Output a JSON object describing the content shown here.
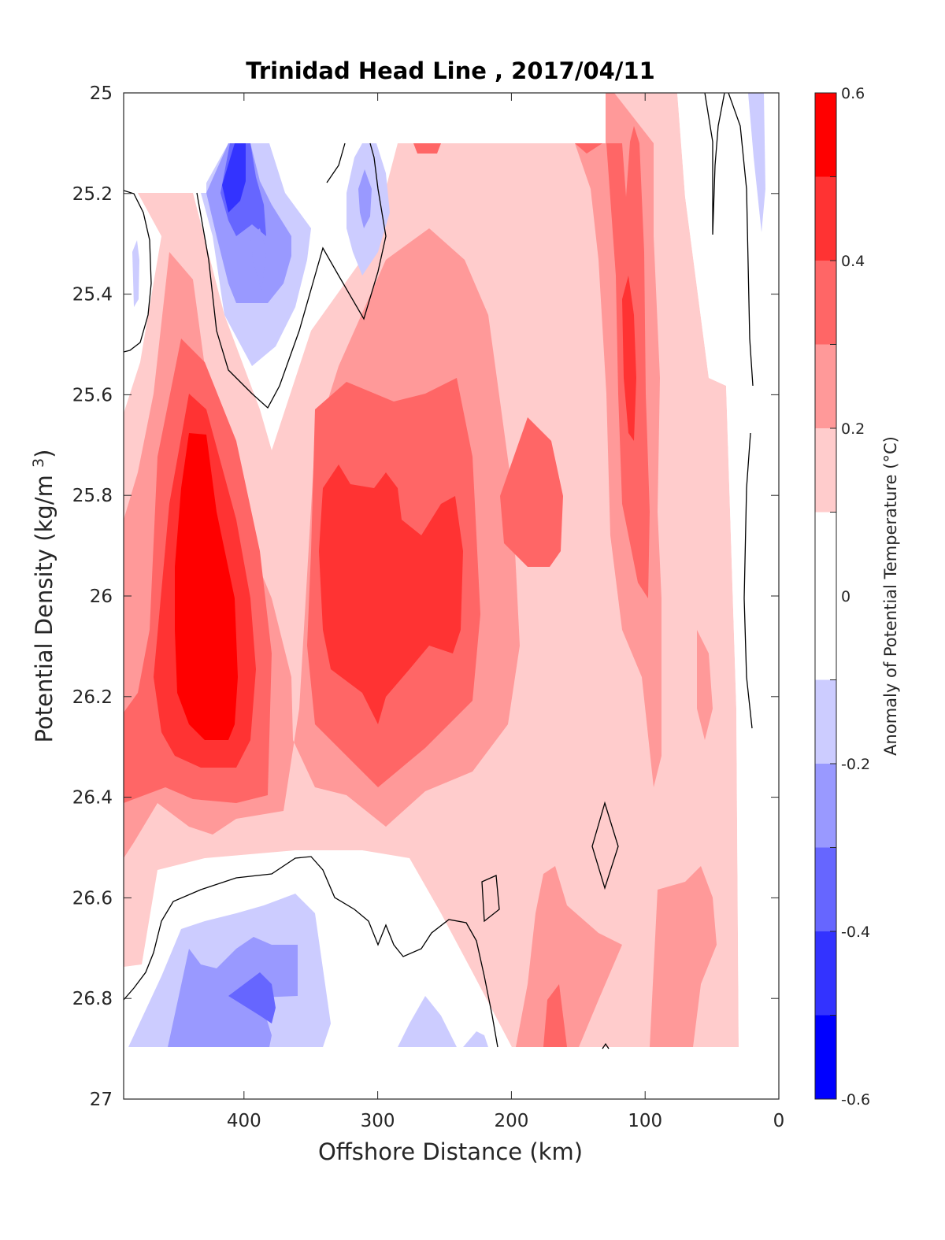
{
  "chart_data": {
    "type": "heatmap",
    "subtype": "filled-contour",
    "title": "Trinidad Head Line , 2017/04/11",
    "xlabel": "Offshore Distance (km)",
    "ylabel": "Potential Density (kg/m3)",
    "xlim": [
      490,
      0
    ],
    "x_reversed": true,
    "ylim": [
      25,
      27
    ],
    "y_reversed": true,
    "xticks": [
      "400",
      "300",
      "200",
      "100",
      "0"
    ],
    "yticks": [
      "25",
      "25.2",
      "25.4",
      "25.6",
      "25.8",
      "26",
      "26.2",
      "26.4",
      "26.6",
      "26.8",
      "27"
    ],
    "colorbar": {
      "label": "Anomaly of Potential Temperature (°C)",
      "limits": [
        -0.6,
        0.6
      ],
      "ticks": [
        "0.6",
        "0.4",
        "0.2",
        "0",
        "-0.2",
        "-0.4",
        "-0.6"
      ],
      "levels": [
        -0.6,
        -0.5,
        -0.4,
        -0.3,
        -0.2,
        -0.1,
        0.1,
        0.2,
        0.3,
        0.4,
        0.5,
        0.6
      ],
      "colors": [
        "#0000ff",
        "#3333ff",
        "#6666ff",
        "#9999ff",
        "#ccccff",
        "#ffffff",
        "#ffcccc",
        "#ff9999",
        "#ff6666",
        "#ff3333",
        "#ff0000"
      ]
    },
    "contour_line_level": 0,
    "features": [
      {
        "kind": "warm-core",
        "center_x": 430,
        "center_y": 26.0,
        "max_anomaly": 0.6
      },
      {
        "kind": "warm-core",
        "center_x": 290,
        "center_y": 26.0,
        "max_anomaly": 0.5
      },
      {
        "kind": "warm-core",
        "center_x": 110,
        "center_y": 25.5,
        "max_anomaly": 0.5
      },
      {
        "kind": "warm-patch",
        "center_x": 175,
        "center_y": 25.85,
        "max_anomaly": 0.4
      },
      {
        "kind": "warm-patch",
        "center_x": 170,
        "center_y": 26.8,
        "max_anomaly": 0.4
      },
      {
        "kind": "cold-core",
        "center_x": 410,
        "center_y": 25.2,
        "min_anomaly": -0.5
      },
      {
        "kind": "cold-patch",
        "center_x": 310,
        "center_y": 25.2,
        "min_anomaly": -0.3
      },
      {
        "kind": "cold-core",
        "center_x": 380,
        "center_y": 26.8,
        "min_anomaly": -0.4
      }
    ]
  }
}
